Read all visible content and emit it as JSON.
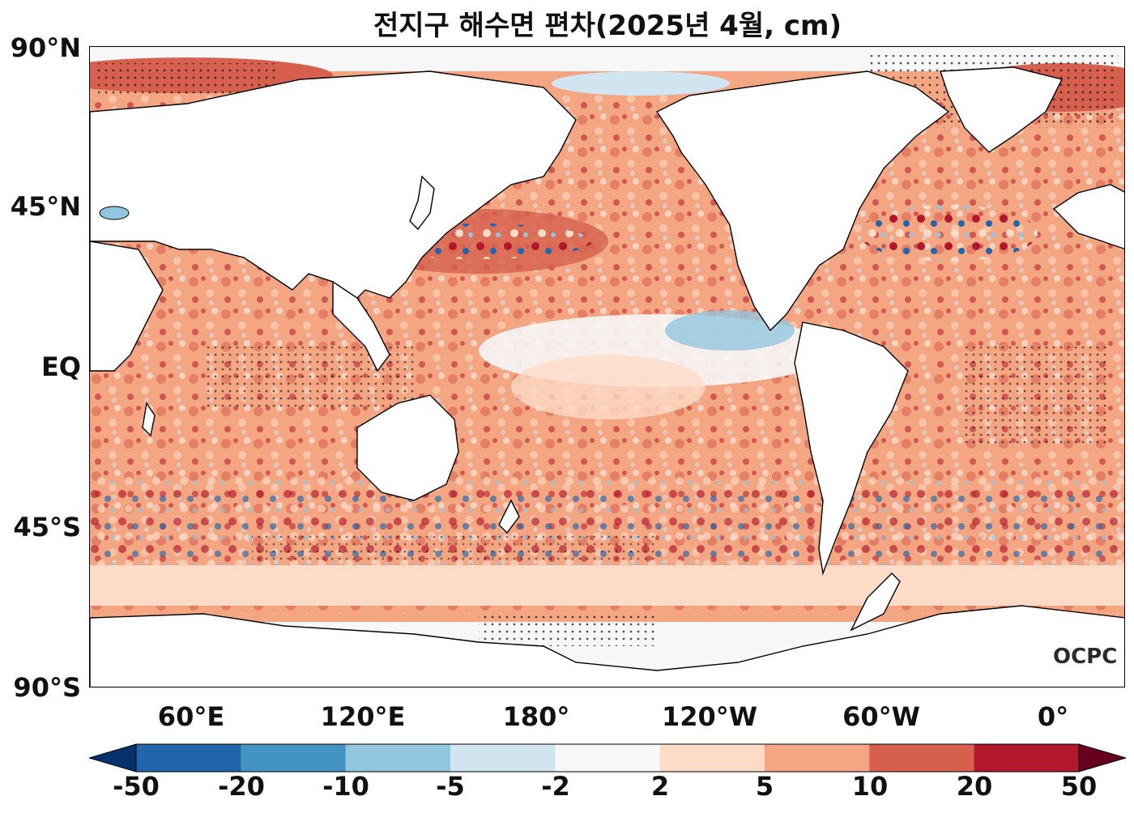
{
  "title": "전지구 해수면 편차(2025년 4월, cm)",
  "lat_labels": [
    "90°N",
    "45°N",
    "EQ",
    "45°S",
    "90°S"
  ],
  "lon_labels": [
    "60°E",
    "120°E",
    "180°",
    "120°W",
    "60°W",
    "0°"
  ],
  "colorbar": {
    "ticks": [
      "-50",
      "-20",
      "-10",
      "-5",
      "-2",
      "2",
      "5",
      "10",
      "20",
      "50"
    ],
    "colors": [
      "#08306b",
      "#2166ac",
      "#4393c3",
      "#92c5de",
      "#d1e5f0",
      "#f7f7f7",
      "#fddbc7",
      "#f4a582",
      "#d6604d",
      "#b2182b",
      "#67001f"
    ]
  },
  "logo": "OCPC"
}
